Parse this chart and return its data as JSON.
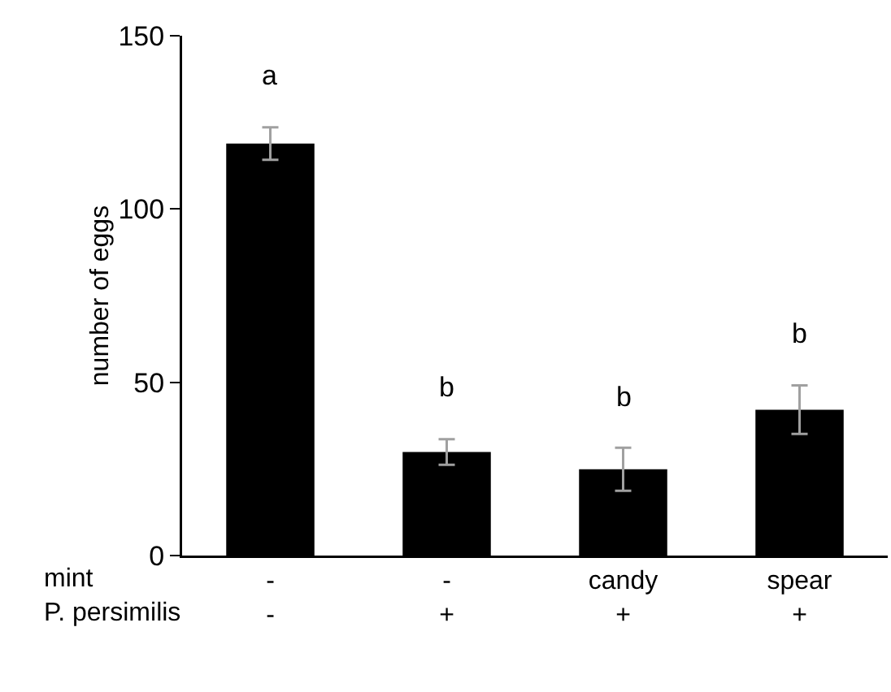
{
  "chart_data": {
    "type": "bar",
    "ylabel": "number of eggs",
    "categories": [
      "-\n-",
      "-\n+",
      "candy\n+",
      "spear\n+"
    ],
    "values": [
      118.9,
      29.9,
      24.9,
      42.1
    ],
    "errors": [
      4.7,
      3.7,
      6.2,
      7
    ],
    "color": "#000000",
    "ylim": [
      0,
      150
    ],
    "yticks": [
      0,
      50,
      100,
      150
    ],
    "annotations": [
      "mint",
      "P. persimilis",
      "a",
      "b",
      "b",
      "b"
    ]
  }
}
